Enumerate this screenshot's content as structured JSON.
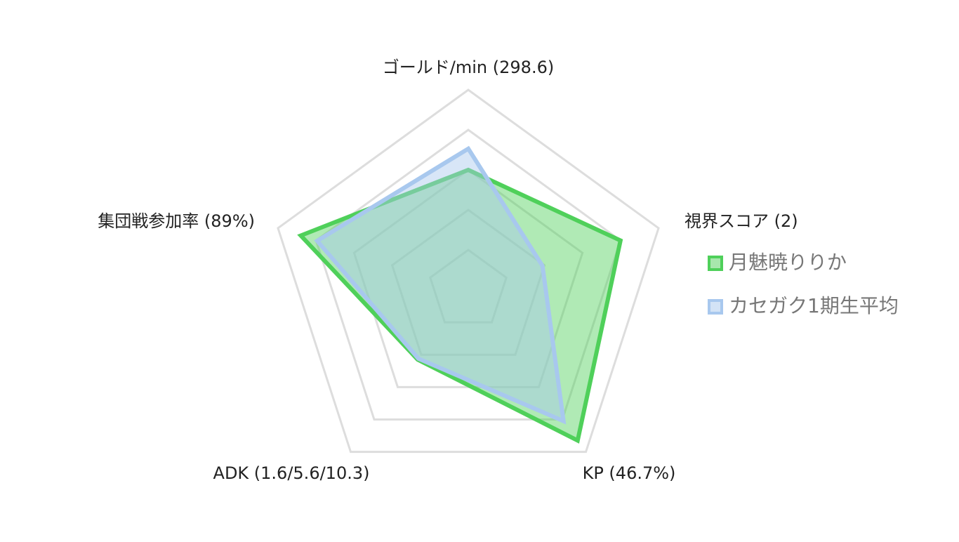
{
  "chart_data": {
    "type": "radar",
    "axes": [
      "ゴールド/min (298.6)",
      "視界スコア (2)",
      "KP (46.7%)",
      "ADK (1.6/5.6/10.3)",
      "集団戦参加率 (89%)"
    ],
    "rlim": [
      0,
      5
    ],
    "rticks": [
      1,
      2,
      3,
      4,
      5
    ],
    "grid": true,
    "legend": "right",
    "series": [
      {
        "name": "月魅暁りりか",
        "color": "#4fd05a",
        "values": [
          3.0,
          4.0,
          4.65,
          2.15,
          4.4
        ]
      },
      {
        "name": "カセガク1期生平均",
        "color": "#a8c8ee",
        "values": [
          3.53,
          1.95,
          4.05,
          2.12,
          3.97
        ]
      }
    ]
  }
}
